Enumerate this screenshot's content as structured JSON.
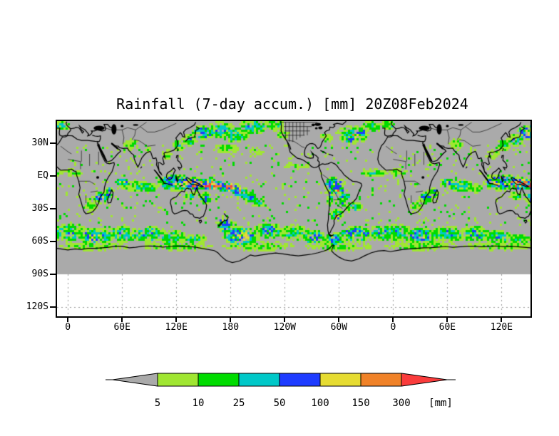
{
  "title": "Rainfall (7-day accum.) [mm] 20Z08Feb2024",
  "axes": {
    "y_ticks": [
      {
        "label": "30N",
        "lat": 30
      },
      {
        "label": "EQ",
        "lat": 0
      },
      {
        "label": "30S",
        "lat": -30
      },
      {
        "label": "60S",
        "lat": -60
      },
      {
        "label": "90S",
        "lat": -90
      },
      {
        "label": "120S",
        "lat": -120
      }
    ],
    "x_ticks": [
      {
        "label": "0",
        "lon": 0
      },
      {
        "label": "60E",
        "lon": 60
      },
      {
        "label": "120E",
        "lon": 120
      },
      {
        "label": "180",
        "lon": 180
      },
      {
        "label": "120W",
        "lon": 240
      },
      {
        "label": "60W",
        "lon": 300
      },
      {
        "label": "0",
        "lon": 360
      },
      {
        "label": "60E",
        "lon": 420
      },
      {
        "label": "120E",
        "lon": 480
      }
    ]
  },
  "chart_data": {
    "type": "heatmap",
    "title": "Rainfall (7-day accum.) [mm] 20Z08Feb2024",
    "variable": "7-day accumulated rainfall",
    "unit": "mm",
    "valid_time": "20Z08Feb2024",
    "projection": {
      "kind": "equirectangular",
      "lon_range": [
        -12,
        512
      ],
      "lat_range": [
        -128,
        50
      ],
      "shaded_lat_min": -90
    },
    "levels": [
      5,
      10,
      25,
      50,
      100,
      150,
      300
    ],
    "palette": {
      "background_gray": "#AAAAAA",
      "colors": [
        "#A0E632",
        "#00DC00",
        "#00C8C8",
        "#1E3CFF",
        "#E6DC32",
        "#F08228",
        "#FA3C3C"
      ],
      "grid_dot_color": "#999999",
      "coast_color": "#000000"
    },
    "colorbar": {
      "labels": [
        "5",
        "10",
        "25",
        "50",
        "100",
        "150",
        "300"
      ],
      "unit_label": "[mm]",
      "left_arrow_color": "#AAAAAA",
      "right_arrow_color": "#FA3C3C"
    },
    "precip_regions_format": [
      "lon_center",
      "lat_center",
      "lon_radius_deg",
      "lat_radius_deg",
      "intensity_level"
    ],
    "precip_regions": [
      [
        -6,
        46,
        9,
        5,
        3.2
      ],
      [
        70,
        29,
        9,
        6,
        2.6
      ],
      [
        88,
        24,
        5,
        3,
        2.0
      ],
      [
        110,
        20,
        8,
        5,
        2.4
      ],
      [
        122,
        28,
        8,
        6,
        3.0
      ],
      [
        135,
        33,
        10,
        6,
        3.4
      ],
      [
        150,
        40,
        14,
        7,
        4.6
      ],
      [
        168,
        42,
        20,
        8,
        3.6
      ],
      [
        185,
        38,
        18,
        8,
        3.4
      ],
      [
        205,
        45,
        18,
        7,
        3.6
      ],
      [
        228,
        47,
        14,
        6,
        3.2
      ],
      [
        238,
        38,
        8,
        6,
        2.4
      ],
      [
        175,
        25,
        16,
        5,
        2.4
      ],
      [
        208,
        22,
        12,
        4,
        2.0
      ],
      [
        255,
        9,
        20,
        3,
        2.4
      ],
      [
        285,
        35,
        8,
        5,
        2.6
      ],
      [
        312,
        33,
        6,
        3,
        6.0
      ],
      [
        318,
        37,
        6,
        3,
        6.2
      ],
      [
        324,
        41,
        7,
        3,
        5.2
      ],
      [
        315,
        38,
        20,
        9,
        3.2
      ],
      [
        335,
        45,
        12,
        6,
        3.0
      ],
      [
        60,
        -6,
        8,
        4,
        5.0
      ],
      [
        75,
        -9,
        16,
        6,
        3.6
      ],
      [
        90,
        -11,
        10,
        5,
        3.2
      ],
      [
        45,
        -14,
        6,
        4,
        4.2
      ],
      [
        120,
        -6,
        22,
        8,
        5.0
      ],
      [
        140,
        -7,
        18,
        6,
        6.8
      ],
      [
        158,
        -8,
        16,
        5,
        7.4
      ],
      [
        176,
        -10,
        12,
        5,
        7.0
      ],
      [
        190,
        -14,
        10,
        5,
        5.2
      ],
      [
        200,
        -19,
        9,
        5,
        4.4
      ],
      [
        210,
        -24,
        9,
        5,
        3.6
      ],
      [
        152,
        -20,
        8,
        6,
        4.0
      ],
      [
        135,
        -18,
        8,
        5,
        3.0
      ],
      [
        5,
        3,
        13,
        4,
        2.6
      ],
      [
        338,
        3,
        18,
        4,
        2.8
      ],
      [
        295,
        -8,
        13,
        8,
        4.4
      ],
      [
        299,
        -13,
        6,
        3,
        6.0
      ],
      [
        306,
        -18,
        6,
        4,
        5.4
      ],
      [
        301,
        -24,
        6,
        4,
        4.8
      ],
      [
        290,
        -20,
        4,
        9,
        4.0
      ],
      [
        297,
        -37,
        4,
        3,
        7.3
      ],
      [
        298,
        -35,
        8,
        6,
        4.2
      ],
      [
        316,
        -28,
        12,
        5,
        3.4
      ],
      [
        36,
        -20,
        9,
        6,
        4.3
      ],
      [
        46,
        -17,
        4,
        3,
        6.2
      ],
      [
        25,
        -28,
        8,
        6,
        2.6
      ],
      [
        0,
        -52,
        25,
        9,
        3.4
      ],
      [
        28,
        -57,
        12,
        5,
        5.0
      ],
      [
        30,
        -55,
        22,
        8,
        4.4
      ],
      [
        60,
        -53,
        22,
        8,
        3.6
      ],
      [
        90,
        -53,
        20,
        8,
        3.9
      ],
      [
        115,
        -56,
        18,
        7,
        3.4
      ],
      [
        140,
        -58,
        15,
        6,
        3.0
      ],
      [
        172,
        -41,
        5,
        3,
        6.4
      ],
      [
        176,
        -46,
        12,
        7,
        4.2
      ],
      [
        192,
        -55,
        22,
        9,
        4.8
      ],
      [
        196,
        -57,
        8,
        3,
        5.5
      ],
      [
        222,
        -50,
        18,
        8,
        3.8
      ],
      [
        250,
        -52,
        20,
        8,
        3.3
      ],
      [
        272,
        -56,
        14,
        7,
        4.0
      ],
      [
        294,
        -58,
        12,
        6,
        4.2
      ],
      [
        320,
        -53,
        22,
        8,
        4.3
      ],
      [
        348,
        -52,
        20,
        8,
        3.5
      ],
      [
        30,
        -64,
        45,
        5,
        2.4
      ],
      [
        120,
        -64,
        45,
        5,
        2.4
      ],
      [
        210,
        -64,
        45,
        5,
        2.4
      ],
      [
        300,
        -64,
        45,
        5,
        2.4
      ]
    ]
  }
}
